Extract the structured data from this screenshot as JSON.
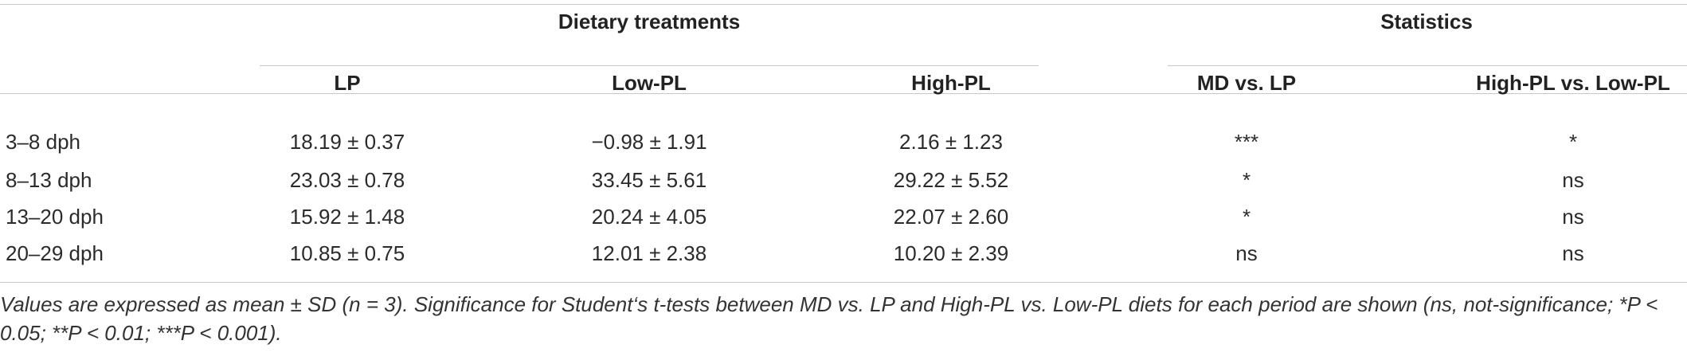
{
  "table": {
    "group_headers": {
      "dietary_treatments": "Dietary treatments",
      "statistics": "Statistics"
    },
    "columns": {
      "lp": "LP",
      "low_pl": "Low-PL",
      "high_pl": "High-PL",
      "md_vs_lp": "MD vs. LP",
      "high_vs_low": "High-PL vs. Low-PL"
    },
    "rows": [
      {
        "period": "3–8 dph",
        "lp": "18.19 ± 0.37",
        "low_pl": "−0.98 ± 1.91",
        "high_pl": "2.16 ± 1.23",
        "md_vs_lp": "***",
        "high_vs_low": "*"
      },
      {
        "period": "8–13 dph",
        "lp": "23.03 ± 0.78",
        "low_pl": "33.45 ± 5.61",
        "high_pl": "29.22 ± 5.52",
        "md_vs_lp": "*",
        "high_vs_low": "ns"
      },
      {
        "period": "13–20 dph",
        "lp": "15.92 ± 1.48",
        "low_pl": "20.24 ± 4.05",
        "high_pl": "22.07 ± 2.60",
        "md_vs_lp": "*",
        "high_vs_low": "ns"
      },
      {
        "period": "20–29 dph",
        "lp": "10.85 ± 0.75",
        "low_pl": "12.01 ± 2.38",
        "high_pl": "10.20 ± 2.39",
        "md_vs_lp": "ns",
        "high_vs_low": "ns"
      }
    ],
    "footnote": "Values are expressed as mean ± SD (n = 3). Significance for Student‘s t-tests between MD vs. LP and High-PL vs. Low-PL diets for each period are shown (ns, not-significance; *P < 0.05; **P < 0.01; ***P < 0.001)."
  }
}
